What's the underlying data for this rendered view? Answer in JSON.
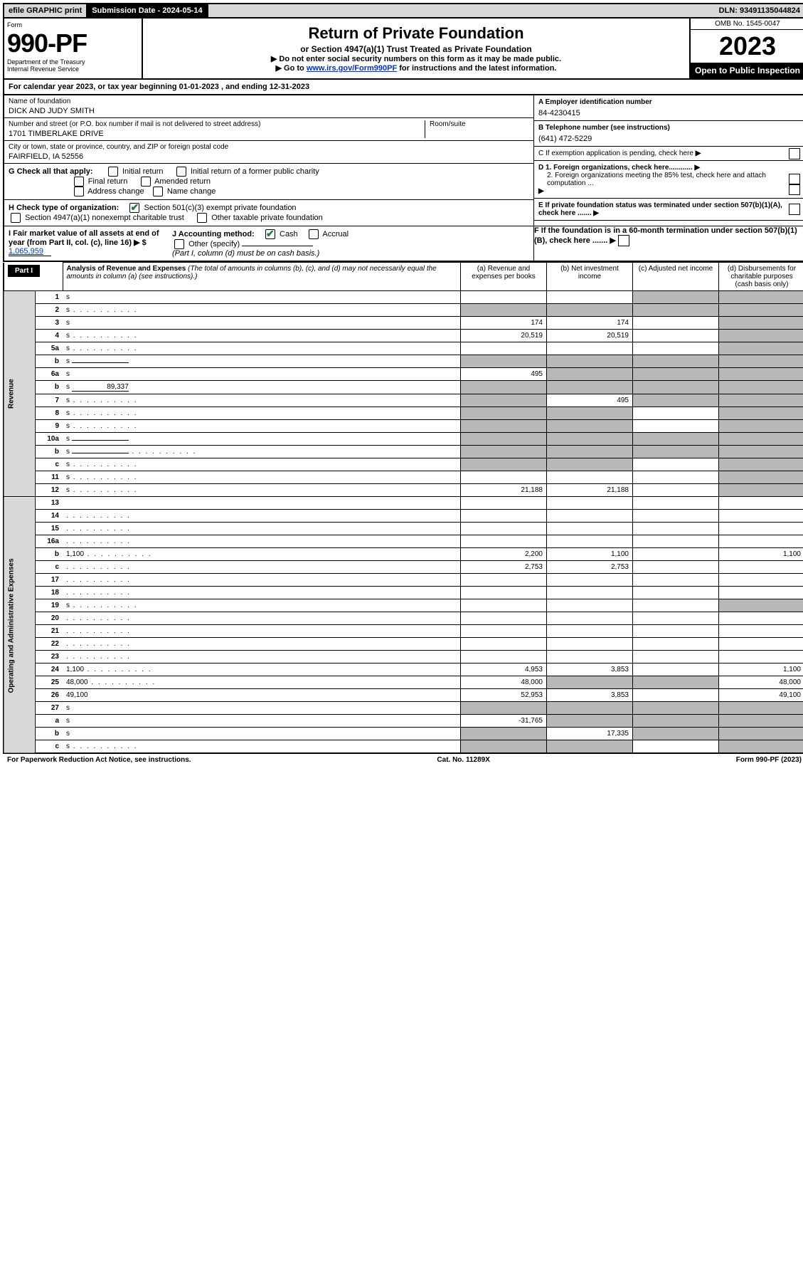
{
  "topbar": {
    "efile": "efile GRAPHIC print",
    "submission_label": "Submission Date - 2024-05-14",
    "dln": "DLN: 93491135044824"
  },
  "header": {
    "form_label": "Form",
    "form_num": "990-PF",
    "dept": "Department of the Treasury",
    "irs": "Internal Revenue Service",
    "title": "Return of Private Foundation",
    "subtitle": "or Section 4947(a)(1) Trust Treated as Private Foundation",
    "note1": "▶ Do not enter social security numbers on this form as it may be made public.",
    "note2": "▶ Go to ",
    "link": "www.irs.gov/Form990PF",
    "note2_rest": " for instructions and the latest information.",
    "omb": "OMB No. 1545-0047",
    "year": "2023",
    "public": "Open to Public Inspection"
  },
  "cal_year": "For calendar year 2023, or tax year beginning 01-01-2023            , and ending 12-31-2023",
  "identity": {
    "name_label": "Name of foundation",
    "name": "DICK AND JUDY SMITH",
    "addr_label": "Number and street (or P.O. box number if mail is not delivered to street address)",
    "addr": "1701 TIMBERLAKE DRIVE",
    "room_label": "Room/suite",
    "city_label": "City or town, state or province, country, and ZIP or foreign postal code",
    "city": "FAIRFIELD, IA  52556",
    "ein_label": "A Employer identification number",
    "ein": "84-4230415",
    "phone_label": "B Telephone number (see instructions)",
    "phone": "(641) 472-5229",
    "c_label": "C If exemption application is pending, check here",
    "d1": "D 1. Foreign organizations, check here............",
    "d2": "2. Foreign organizations meeting the 85% test, check here and attach computation ...",
    "e_label": "E  If private foundation status was terminated under section 507(b)(1)(A), check here .......",
    "f_label": "F  If the foundation is in a 60-month termination under section 507(b)(1)(B), check here .......",
    "g_label": "G Check all that apply:",
    "g_opts": [
      "Initial return",
      "Initial return of a former public charity",
      "Final return",
      "Amended return",
      "Address change",
      "Name change"
    ],
    "h_label": "H Check type of organization:",
    "h_opt1": "Section 501(c)(3) exempt private foundation",
    "h_opt2": "Section 4947(a)(1) nonexempt charitable trust",
    "h_opt3": "Other taxable private foundation",
    "i_label": "I Fair market value of all assets at end of year (from Part II, col. (c), line 16)",
    "i_val": "1,065,959",
    "j_label": "J Accounting method:",
    "j_cash": "Cash",
    "j_accrual": "Accrual",
    "j_other": "Other (specify)",
    "j_note": "(Part I, column (d) must be on cash basis.)"
  },
  "part1": {
    "label": "Part I",
    "title": "Analysis of Revenue and Expenses",
    "title_note": "(The total of amounts in columns (b), (c), and (d) may not necessarily equal the amounts in column (a) (see instructions).)",
    "col_a": "(a)   Revenue and expenses per books",
    "col_b": "(b)   Net investment income",
    "col_c": "(c)   Adjusted net income",
    "col_d": "(d)  Disbursements for charitable purposes (cash basis only)",
    "revenue_label": "Revenue",
    "expense_label": "Operating and Administrative Expenses"
  },
  "rows": [
    {
      "n": "1",
      "d": "s",
      "a": "",
      "b": "",
      "c": "s"
    },
    {
      "n": "2",
      "d": "s",
      "dots": true,
      "a": "s",
      "b": "s",
      "c": "s"
    },
    {
      "n": "3",
      "d": "s",
      "a": "174",
      "b": "174",
      "c": ""
    },
    {
      "n": "4",
      "d": "s",
      "dots": true,
      "a": "20,519",
      "b": "20,519",
      "c": ""
    },
    {
      "n": "5a",
      "d": "s",
      "dots": true,
      "a": "",
      "b": "",
      "c": ""
    },
    {
      "n": "b",
      "d": "s",
      "inline": true,
      "a": "s",
      "b": "s",
      "c": "s"
    },
    {
      "n": "6a",
      "d": "s",
      "a": "495",
      "b": "s",
      "c": "s"
    },
    {
      "n": "b",
      "d": "s",
      "inline": true,
      "iv": "89,337",
      "a": "s",
      "b": "s",
      "c": "s"
    },
    {
      "n": "7",
      "d": "s",
      "dots": true,
      "a": "s",
      "b": "495",
      "c": "s"
    },
    {
      "n": "8",
      "d": "s",
      "dots": true,
      "a": "s",
      "b": "s",
      "c": ""
    },
    {
      "n": "9",
      "d": "s",
      "dots": true,
      "a": "s",
      "b": "s",
      "c": ""
    },
    {
      "n": "10a",
      "d": "s",
      "inline": true,
      "a": "s",
      "b": "s",
      "c": "s"
    },
    {
      "n": "b",
      "d": "s",
      "dots": true,
      "inline": true,
      "a": "s",
      "b": "s",
      "c": "s"
    },
    {
      "n": "c",
      "d": "s",
      "dots": true,
      "a": "s",
      "b": "s",
      "c": ""
    },
    {
      "n": "11",
      "d": "s",
      "dots": true,
      "a": "",
      "b": "",
      "c": ""
    },
    {
      "n": "12",
      "d": "s",
      "dots": true,
      "a": "21,188",
      "b": "21,188",
      "c": ""
    },
    {
      "n": "13",
      "d": "",
      "a": "",
      "b": "",
      "c": ""
    },
    {
      "n": "14",
      "d": "",
      "dots": true,
      "a": "",
      "b": "",
      "c": ""
    },
    {
      "n": "15",
      "d": "",
      "dots": true,
      "a": "",
      "b": "",
      "c": ""
    },
    {
      "n": "16a",
      "d": "",
      "dots": true,
      "a": "",
      "b": "",
      "c": ""
    },
    {
      "n": "b",
      "d": "1,100",
      "dots": true,
      "a": "2,200",
      "b": "1,100",
      "c": ""
    },
    {
      "n": "c",
      "d": "",
      "dots": true,
      "a": "2,753",
      "b": "2,753",
      "c": ""
    },
    {
      "n": "17",
      "d": "",
      "dots": true,
      "a": "",
      "b": "",
      "c": ""
    },
    {
      "n": "18",
      "d": "",
      "dots": true,
      "a": "",
      "b": "",
      "c": ""
    },
    {
      "n": "19",
      "d": "s",
      "dots": true,
      "a": "",
      "b": "",
      "c": ""
    },
    {
      "n": "20",
      "d": "",
      "dots": true,
      "a": "",
      "b": "",
      "c": ""
    },
    {
      "n": "21",
      "d": "",
      "dots": true,
      "a": "",
      "b": "",
      "c": ""
    },
    {
      "n": "22",
      "d": "",
      "dots": true,
      "a": "",
      "b": "",
      "c": ""
    },
    {
      "n": "23",
      "d": "",
      "dots": true,
      "a": "",
      "b": "",
      "c": ""
    },
    {
      "n": "24",
      "d": "1,100",
      "dots": true,
      "a": "4,953",
      "b": "3,853",
      "c": ""
    },
    {
      "n": "25",
      "d": "48,000",
      "dots": true,
      "a": "48,000",
      "b": "s",
      "c": "s"
    },
    {
      "n": "26",
      "d": "49,100",
      "a": "52,953",
      "b": "3,853",
      "c": ""
    },
    {
      "n": "27",
      "d": "s",
      "a": "s",
      "b": "s",
      "c": "s"
    },
    {
      "n": "a",
      "d": "s",
      "a": "-31,765",
      "b": "s",
      "c": "s"
    },
    {
      "n": "b",
      "d": "s",
      "a": "s",
      "b": "17,335",
      "c": "s"
    },
    {
      "n": "c",
      "d": "s",
      "dots": true,
      "a": "s",
      "b": "s",
      "c": ""
    }
  ],
  "footer": {
    "left": "For Paperwork Reduction Act Notice, see instructions.",
    "mid": "Cat. No. 11289X",
    "right": "Form 990-PF (2023)"
  }
}
